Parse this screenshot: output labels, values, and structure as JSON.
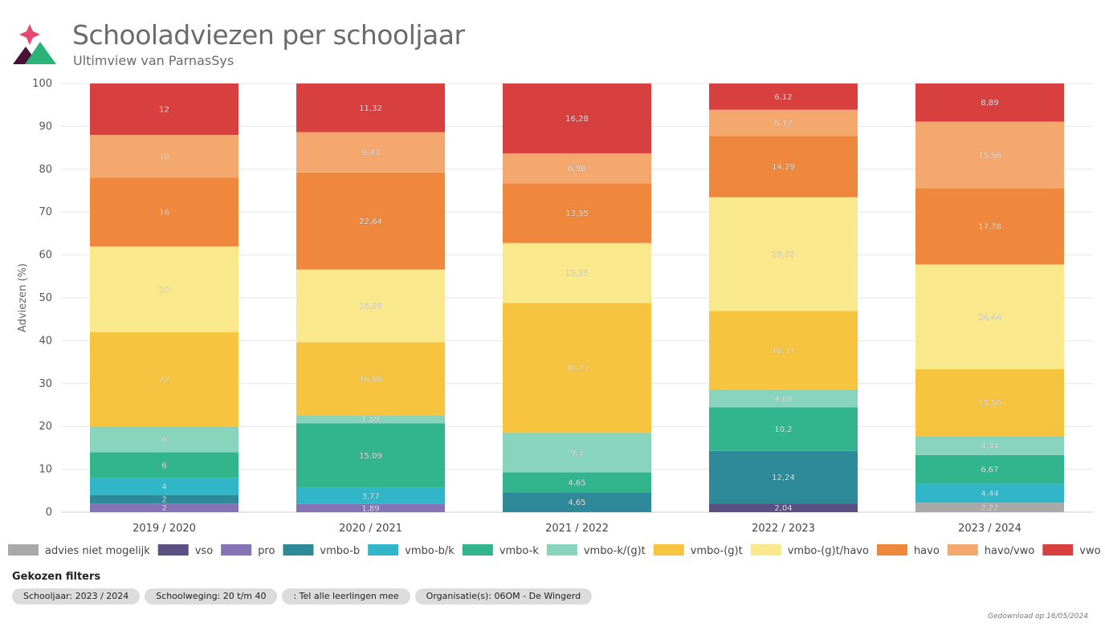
{
  "header": {
    "title": "Schooladviezen per schooljaar",
    "subtitle": "Ultimview van ParnasSys"
  },
  "chart_data": {
    "type": "bar",
    "stacked": true,
    "ylabel": "Adviezen (%)",
    "ylim": [
      0,
      100
    ],
    "yticks": [
      0,
      10,
      20,
      30,
      40,
      50,
      60,
      70,
      80,
      90,
      100
    ],
    "grid": true,
    "legend_placement": "bottom",
    "categories": [
      "2019 / 2020",
      "2020 / 2021",
      "2021 / 2022",
      "2022 / 2023",
      "2023 / 2024"
    ],
    "series": [
      {
        "name": "advies niet mogelijk",
        "color": "#a9a9a9",
        "values": [
          0,
          0,
          0,
          0,
          2.22
        ],
        "labels": [
          "",
          "",
          "",
          "",
          "2,22"
        ]
      },
      {
        "name": "vso",
        "color": "#5b5082",
        "values": [
          0,
          0,
          0,
          2.04,
          0
        ],
        "labels": [
          "",
          "",
          "",
          "2,04",
          ""
        ]
      },
      {
        "name": "pro",
        "color": "#8673b5",
        "values": [
          2,
          1.89,
          0,
          0,
          0
        ],
        "labels": [
          "2",
          "1,89",
          "",
          "",
          ""
        ]
      },
      {
        "name": "vmbo-b",
        "color": "#2e8a99",
        "values": [
          2,
          0,
          4.65,
          12.24,
          0
        ],
        "labels": [
          "2",
          "",
          "4,65",
          "12,24",
          ""
        ]
      },
      {
        "name": "vmbo-b/k",
        "color": "#31b5c9",
        "values": [
          4,
          3.77,
          0,
          0,
          4.44
        ],
        "labels": [
          "4",
          "3,77",
          "",
          "",
          "4,44"
        ]
      },
      {
        "name": "vmbo-k",
        "color": "#32b58c",
        "values": [
          6,
          15.09,
          4.65,
          10.2,
          6.67
        ],
        "labels": [
          "6",
          "15,09",
          "4,65",
          "10,2",
          "6,67"
        ]
      },
      {
        "name": "vmbo-k/(g)t",
        "color": "#88d4bc",
        "values": [
          6,
          1.89,
          9.3,
          4.08,
          4.44
        ],
        "labels": [
          "6",
          "1,89",
          "9,3",
          "4,08",
          "4,44"
        ]
      },
      {
        "name": "vmbo-(g)t",
        "color": "#f7c43f",
        "values": [
          22,
          16.98,
          30.23,
          18.37,
          15.56
        ],
        "labels": [
          "22",
          "16,98",
          "30,23",
          "18,37",
          "15,56"
        ]
      },
      {
        "name": "vmbo-(g)t/havo",
        "color": "#fae88d",
        "values": [
          20,
          16.98,
          13.95,
          26.53,
          24.44
        ],
        "labels": [
          "20",
          "16,98",
          "13,95",
          "26,53",
          "24,44"
        ]
      },
      {
        "name": "havo",
        "color": "#ef883c",
        "values": [
          16,
          22.64,
          13.95,
          14.29,
          17.78
        ],
        "labels": [
          "16",
          "22,64",
          "13,95",
          "14,29",
          "17,78"
        ]
      },
      {
        "name": "havo/vwo",
        "color": "#f4a86e",
        "values": [
          10,
          9.43,
          6.98,
          6.12,
          15.56
        ],
        "labels": [
          "10",
          "9,43",
          "6,98",
          "6,12",
          "15,56"
        ]
      },
      {
        "name": "vwo",
        "color": "#d84040",
        "values": [
          12,
          11.32,
          16.28,
          6.12,
          8.89
        ],
        "labels": [
          "12",
          "11,32",
          "16,28",
          "6,12",
          "8,89"
        ]
      }
    ]
  },
  "filters": {
    "title": "Gekozen filters",
    "chips": [
      "Schooljaar: 2023 / 2024",
      "Schoolweging: 20 t/m 40",
      ": Tel alle leerlingen mee",
      "Organisatie(s): 06OM - De Wingerd"
    ]
  },
  "footer": {
    "download_text": "Gedownload op 16/05/2024"
  }
}
